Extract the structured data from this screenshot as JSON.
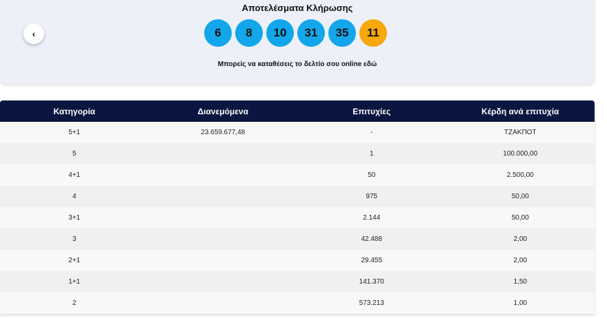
{
  "header": {
    "title": "Αποτελέσματα Κλήρωσης",
    "balls": [
      {
        "number": 6,
        "color": "#13a6ea"
      },
      {
        "number": 8,
        "color": "#13a6ea"
      },
      {
        "number": 10,
        "color": "#13a6ea"
      },
      {
        "number": 31,
        "color": "#13a6ea"
      },
      {
        "number": 35,
        "color": "#13a6ea"
      },
      {
        "number": 11,
        "color": "#f8a70c"
      }
    ],
    "link": "Μπορείς να καταθέσεις το δελτίο σου online εδώ"
  },
  "table": {
    "columns": [
      "Κατηγορία",
      "Διανεμόμενα",
      "Επιτυχίες",
      "Κέρδη ανά επιτυχία"
    ],
    "rows": [
      {
        "category": "5+1",
        "distributed": "23.659.677,48",
        "winners": "-",
        "prize": "ΤΖΑΚΠΟΤ"
      },
      {
        "category": "5",
        "winners": "1",
        "prize": "100.000,00"
      },
      {
        "category": "4+1",
        "winners": "50",
        "prize": "2.500,00"
      },
      {
        "category": "4",
        "winners": "975",
        "prize": "50,00"
      },
      {
        "category": "3+1",
        "winners": "2.144",
        "prize": "50,00"
      },
      {
        "category": "3",
        "winners": "42.488",
        "prize": "2,00"
      },
      {
        "category": "2+1",
        "winners": "29.455",
        "prize": "2,00"
      },
      {
        "category": "1+1",
        "winners": "141.370",
        "prize": "1,50"
      },
      {
        "category": "2",
        "winners": "573.213",
        "prize": "1,00"
      }
    ]
  }
}
